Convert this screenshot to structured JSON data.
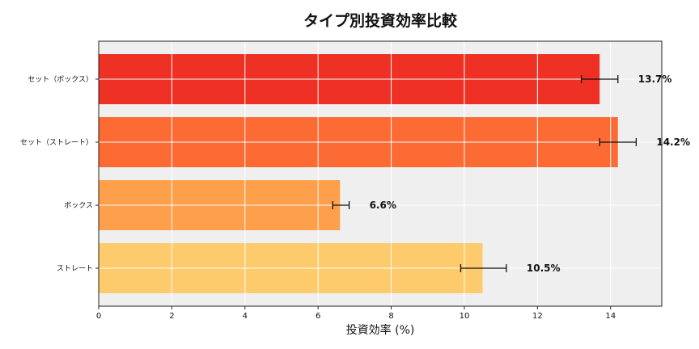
{
  "chart_data": {
    "type": "bar",
    "orientation": "horizontal",
    "title": "タイプ別投資効率比較",
    "xlabel": "投資効率 (%)",
    "ylabel": "",
    "categories": [
      "セット（ボックス）",
      "セット（ストレート）",
      "ボックス",
      "ストレート"
    ],
    "values": [
      13.7,
      14.2,
      6.6,
      10.5
    ],
    "error_bars": [
      {
        "low": 13.2,
        "high": 14.2
      },
      {
        "low": 13.7,
        "high": 14.7
      },
      {
        "low": 6.4,
        "high": 6.85
      },
      {
        "low": 9.9,
        "high": 11.15
      }
    ],
    "data_labels": [
      "13.7%",
      "14.2%",
      "6.6%",
      "10.5%"
    ],
    "colors": [
      "#ee3124",
      "#fd6b35",
      "#fd9f4b",
      "#fdcb6b"
    ],
    "xlim": [
      0,
      15.4
    ],
    "xticks": [
      0,
      2,
      4,
      6,
      8,
      10,
      12,
      14
    ],
    "grid": true,
    "legend": "none",
    "plot_background": "#efefef"
  }
}
